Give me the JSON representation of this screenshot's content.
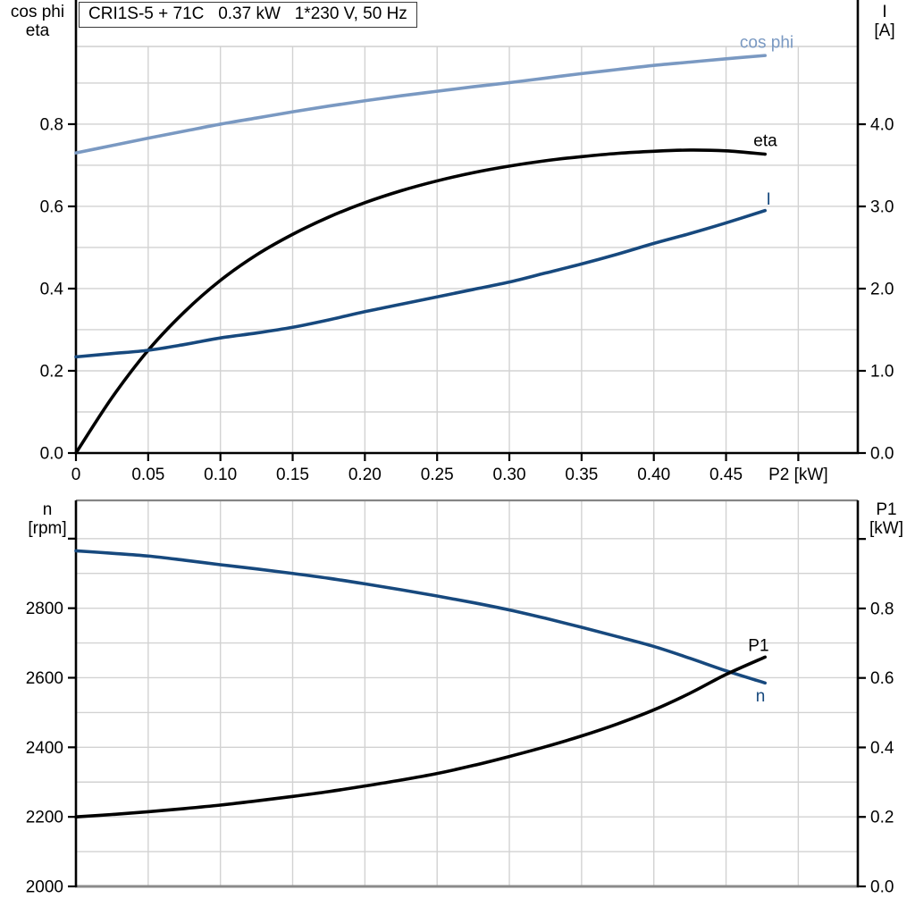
{
  "colors": {
    "cos_phi": "#7a99c2",
    "dark_blue": "#17497e",
    "black": "#000000",
    "grid": "#d2d2d2",
    "border_gray": "#8a8a8a"
  },
  "axis_titles": {
    "top_left": [
      "cos phi",
      "eta"
    ],
    "top_right": [
      "I",
      "[A]"
    ],
    "bottom_left": [
      "n",
      "[rpm]"
    ],
    "bottom_right": [
      "P1",
      "[kW]"
    ]
  },
  "chart_data": [
    {
      "type": "line",
      "title": "CRI1S-5 + 71C   0.37 kW   1*230 V, 50 Hz",
      "x_axis": {
        "label": "P2 [kW]",
        "min": 0,
        "max": 0.5412,
        "grid_step": 0.05,
        "ticks": [
          {
            "v": 0,
            "label": "0"
          },
          {
            "v": 0.05,
            "label": "0.05"
          },
          {
            "v": 0.1,
            "label": "0.10"
          },
          {
            "v": 0.15,
            "label": "0.15"
          },
          {
            "v": 0.2,
            "label": "0.20"
          },
          {
            "v": 0.25,
            "label": "0.25"
          },
          {
            "v": 0.3,
            "label": "0.30"
          },
          {
            "v": 0.35,
            "label": "0.35"
          },
          {
            "v": 0.4,
            "label": "0.40"
          },
          {
            "v": 0.45,
            "label": "0.45"
          },
          {
            "v": 0.5,
            "label": "P2 [kW]"
          }
        ]
      },
      "left_axis": {
        "title": "cos phi / eta",
        "min": 0,
        "max": 0.989,
        "grid_step": 0.1,
        "ticks": [
          {
            "v": 0.0,
            "label": "0.0"
          },
          {
            "v": 0.2,
            "label": "0.2"
          },
          {
            "v": 0.4,
            "label": "0.4"
          },
          {
            "v": 0.6,
            "label": "0.6"
          },
          {
            "v": 0.8,
            "label": "0.8"
          }
        ]
      },
      "right_axis": {
        "title": "I [A]",
        "min": 0,
        "max": 4.946,
        "grid_step": 0.5,
        "ticks": [
          {
            "v": 0.0,
            "label": "0.0"
          },
          {
            "v": 1.0,
            "label": "1.0"
          },
          {
            "v": 2.0,
            "label": "2.0"
          },
          {
            "v": 3.0,
            "label": "3.0"
          },
          {
            "v": 4.0,
            "label": "4.0"
          }
        ]
      },
      "x": [
        0,
        0.025,
        0.05,
        0.075,
        0.1,
        0.125,
        0.15,
        0.175,
        0.2,
        0.225,
        0.25,
        0.275,
        0.3,
        0.325,
        0.35,
        0.375,
        0.4,
        0.425,
        0.45,
        0.477
      ],
      "series": [
        {
          "name": "cos phi",
          "axis": "left",
          "color": "#7a99c2",
          "values": [
            0.73,
            0.748,
            0.766,
            0.783,
            0.8,
            0.815,
            0.83,
            0.844,
            0.857,
            0.869,
            0.88,
            0.891,
            0.901,
            0.912,
            0.923,
            0.933,
            0.943,
            0.951,
            0.959,
            0.967
          ],
          "label": {
            "text": "cos phi",
            "x": 0.4595,
            "y": 1.0,
            "anchor": "start"
          }
        },
        {
          "name": "eta",
          "axis": "left",
          "color": "#000000",
          "values": [
            0.0,
            0.135,
            0.25,
            0.343,
            0.42,
            0.482,
            0.532,
            0.574,
            0.609,
            0.638,
            0.662,
            0.682,
            0.698,
            0.711,
            0.721,
            0.729,
            0.734,
            0.737,
            0.735,
            0.727
          ],
          "label": {
            "text": "eta",
            "x": 0.469,
            "y": 0.761,
            "anchor": "start"
          }
        },
        {
          "name": "I",
          "axis": "right",
          "color": "#17497e",
          "values": [
            1.17,
            1.21,
            1.25,
            1.32,
            1.4,
            1.46,
            1.53,
            1.62,
            1.72,
            1.81,
            1.9,
            1.99,
            2.08,
            2.19,
            2.3,
            2.42,
            2.55,
            2.67,
            2.8,
            2.95
          ],
          "label": {
            "text": "I",
            "x": 0.4794,
            "y": 3.09,
            "anchor": "middle"
          }
        }
      ]
    },
    {
      "type": "line",
      "title": "",
      "x_axis": {
        "label": "",
        "min": 0,
        "max": 0.5412,
        "grid_step": 0.05,
        "ticks": []
      },
      "left_axis": {
        "title": "n [rpm]",
        "min": 2000,
        "max": 3110,
        "grid_step": 100,
        "ticks": [
          {
            "v": 2000,
            "label": "2000"
          },
          {
            "v": 2200,
            "label": "2200"
          },
          {
            "v": 2400,
            "label": "2400"
          },
          {
            "v": 2600,
            "label": "2600"
          },
          {
            "v": 2800,
            "label": "2800"
          },
          {
            "v": 3000,
            "label": ""
          }
        ]
      },
      "right_axis": {
        "title": "P1 [kW]",
        "min": 0,
        "max": 1.111,
        "grid_step": 0.1,
        "ticks": [
          {
            "v": 0.0,
            "label": "0.0"
          },
          {
            "v": 0.2,
            "label": "0.2"
          },
          {
            "v": 0.4,
            "label": "0.4"
          },
          {
            "v": 0.6,
            "label": "0.6"
          },
          {
            "v": 0.8,
            "label": "0.8"
          },
          {
            "v": 1.0,
            "label": ""
          }
        ]
      },
      "x": [
        0,
        0.025,
        0.05,
        0.075,
        0.1,
        0.125,
        0.15,
        0.175,
        0.2,
        0.225,
        0.25,
        0.275,
        0.3,
        0.325,
        0.35,
        0.375,
        0.4,
        0.425,
        0.45,
        0.477
      ],
      "series": [
        {
          "name": "n",
          "axis": "left",
          "color": "#17497e",
          "values": [
            2965,
            2958,
            2950,
            2938,
            2925,
            2913,
            2900,
            2886,
            2870,
            2853,
            2835,
            2816,
            2795,
            2771,
            2745,
            2718,
            2690,
            2656,
            2620,
            2585
          ],
          "label": {
            "text": "n",
            "x": 0.4738,
            "y": 2548,
            "anchor": "middle"
          }
        },
        {
          "name": "P1",
          "axis": "right",
          "color": "#000000",
          "values": [
            0.2,
            0.207,
            0.215,
            0.224,
            0.234,
            0.246,
            0.259,
            0.273,
            0.289,
            0.306,
            0.325,
            0.348,
            0.374,
            0.402,
            0.433,
            0.468,
            0.508,
            0.556,
            0.61,
            0.66
          ],
          "label": {
            "text": "P1",
            "x": 0.4725,
            "y": 0.694,
            "anchor": "middle"
          }
        }
      ]
    }
  ]
}
